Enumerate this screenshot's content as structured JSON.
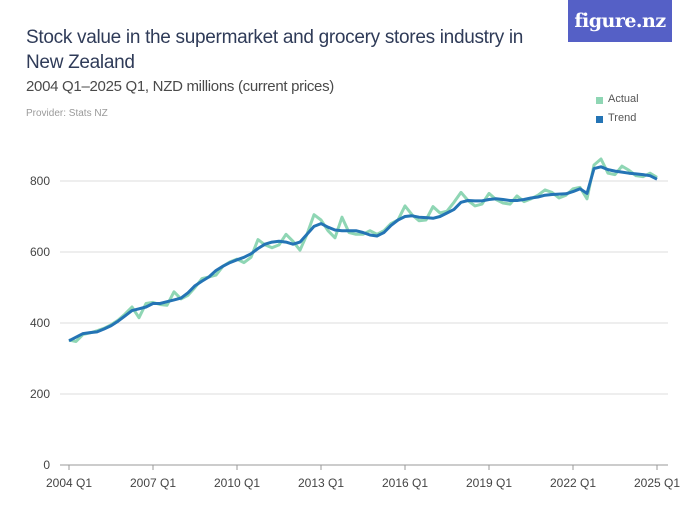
{
  "header": {
    "title": "Stock value in the supermarket and grocery stores industry in New Zealand",
    "subtitle": "2004 Q1–2025 Q1, NZD millions (current prices)",
    "provider": "Provider: Stats NZ",
    "logo": "figure.nz"
  },
  "colors": {
    "actual": "#8fd6b4",
    "trend": "#2474b5",
    "logo_bg": "#5560c6"
  },
  "chart_data": {
    "type": "line",
    "title": "Stock value in the supermarket and grocery stores industry in New Zealand",
    "xlabel": "",
    "ylabel": "",
    "ylim": [
      0,
      800
    ],
    "yticks": [
      "0",
      "200",
      "400",
      "600",
      "800"
    ],
    "xticks": [
      "2004 Q1",
      "2007 Q1",
      "2010 Q1",
      "2013 Q1",
      "2016 Q1",
      "2019 Q1",
      "2022 Q1",
      "2025 Q1"
    ],
    "x_start": "2004 Q1",
    "x_end": "2025 Q1",
    "grid": true,
    "legend": "top-right",
    "series": [
      {
        "name": "Actual",
        "values": [
          352,
          348,
          368,
          372,
          378,
          385,
          395,
          408,
          425,
          445,
          415,
          455,
          458,
          452,
          450,
          488,
          468,
          478,
          500,
          525,
          530,
          535,
          560,
          572,
          580,
          570,
          585,
          635,
          620,
          612,
          620,
          650,
          630,
          605,
          650,
          705,
          690,
          660,
          640,
          698,
          655,
          650,
          650,
          660,
          650,
          660,
          680,
          690,
          730,
          705,
          688,
          690,
          728,
          710,
          715,
          740,
          768,
          745,
          730,
          735,
          765,
          748,
          738,
          735,
          758,
          742,
          750,
          760,
          775,
          768,
          752,
          760,
          778,
          782,
          750,
          845,
          862,
          822,
          818,
          842,
          830,
          815,
          812,
          822,
          810
        ]
      },
      {
        "name": "Trend",
        "values": [
          350,
          360,
          370,
          373,
          375,
          383,
          392,
          405,
          420,
          435,
          440,
          445,
          455,
          455,
          460,
          465,
          470,
          485,
          505,
          518,
          530,
          548,
          560,
          570,
          578,
          585,
          595,
          610,
          622,
          628,
          630,
          628,
          622,
          628,
          650,
          672,
          680,
          670,
          662,
          660,
          660,
          660,
          655,
          648,
          645,
          655,
          675,
          690,
          700,
          702,
          698,
          697,
          695,
          700,
          710,
          720,
          740,
          745,
          744,
          744,
          748,
          750,
          748,
          745,
          745,
          748,
          752,
          755,
          760,
          762,
          763,
          764,
          770,
          778,
          765,
          835,
          840,
          832,
          828,
          825,
          822,
          820,
          818,
          815,
          805
        ]
      }
    ]
  }
}
